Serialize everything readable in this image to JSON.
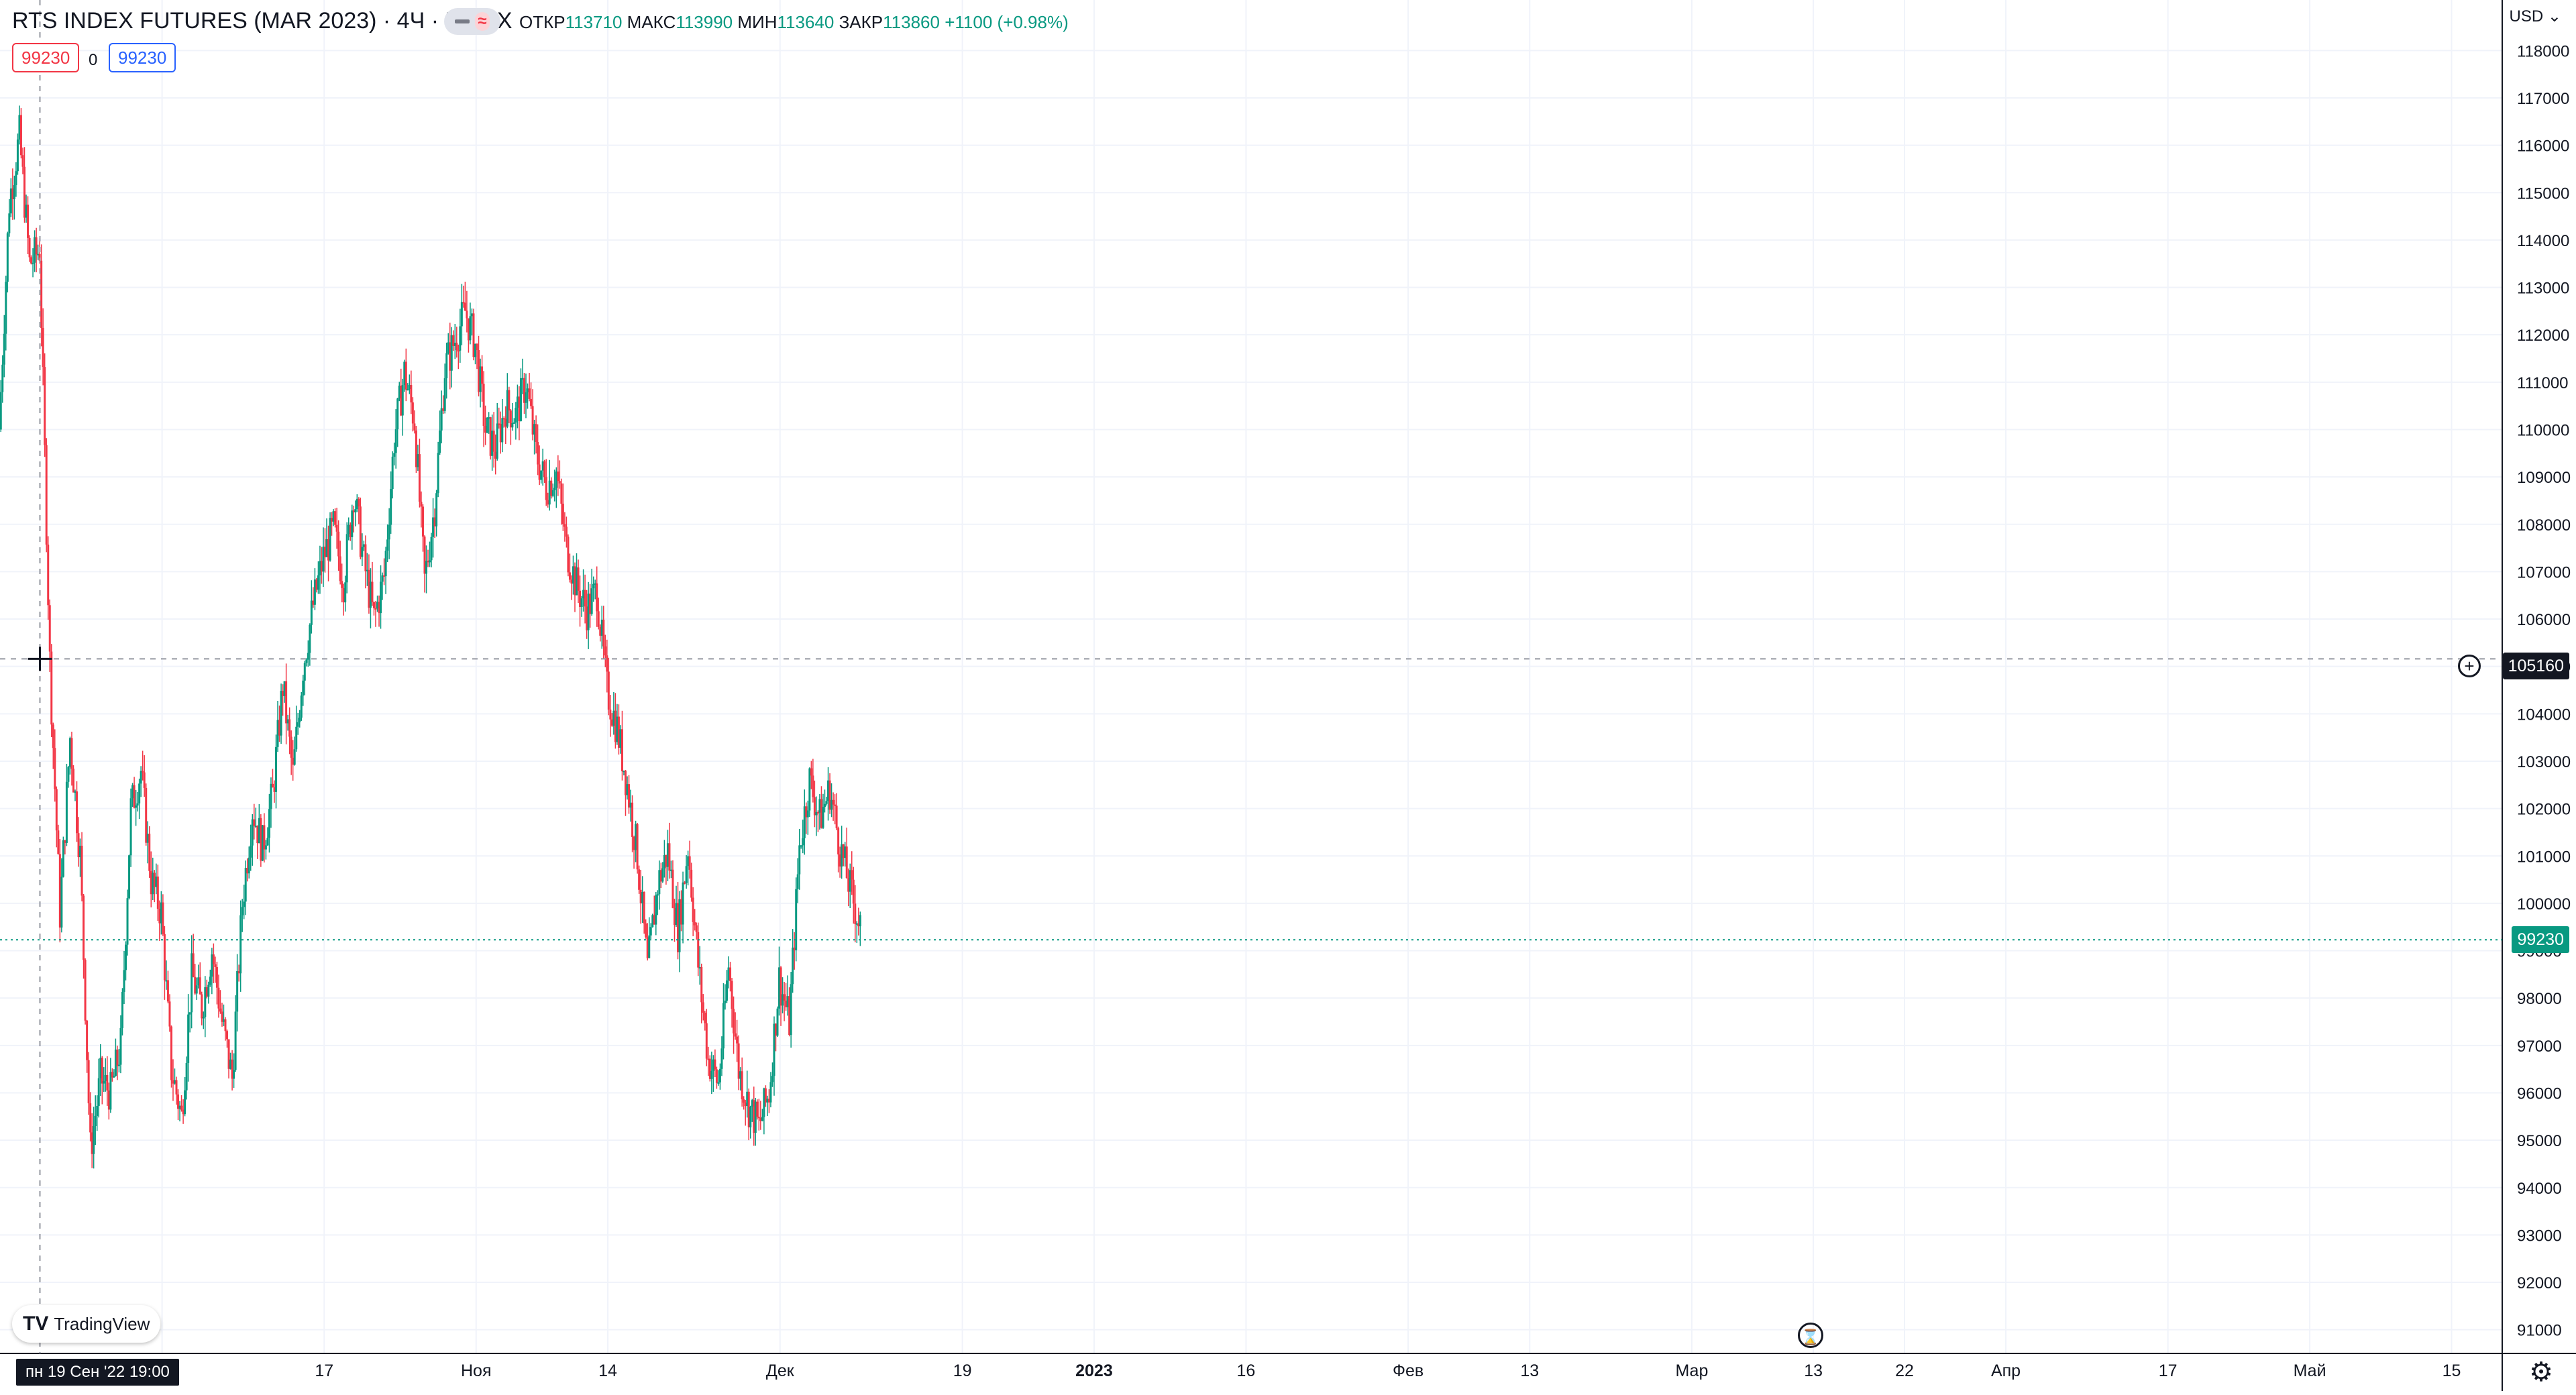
{
  "header": {
    "title": "RTS INDEX FUTURES (MAR 2023) · 4Ч · MOEX",
    "ohlc": {
      "open_label": "ОТКР",
      "open": "113710",
      "high_label": "МАКС",
      "high": "113990",
      "low_label": "МИН",
      "low": "113640",
      "close_label": "ЗАКР",
      "close": "113860",
      "change": "+1100 (+0.98%)"
    },
    "badges": {
      "bid": "99230",
      "spread": "0",
      "ask": "99230"
    }
  },
  "currency_menu": "USD",
  "crosshair": {
    "price_label": "105160",
    "time_label": "пн 19 Сен '22   19:00"
  },
  "last_price_label": "99230",
  "logo_text": "TradingView",
  "colors": {
    "up": "#089981",
    "down": "#f23645",
    "grid": "#f0f3fa",
    "crosshair": "#9598a1",
    "last_price": "#089981"
  },
  "icons": {
    "settings": "gear-icon",
    "alert": "hourglass-icon",
    "add": "plus-circle-icon"
  },
  "chart_data": {
    "type": "candlestick",
    "title": "RTS INDEX FUTURES (MAR 2023) · 4Ч · MOEX",
    "ylim": [
      90500,
      118500
    ],
    "y_ticks": [
      "118000",
      "117000",
      "116000",
      "115000",
      "114000",
      "113000",
      "112000",
      "111000",
      "110000",
      "109000",
      "108000",
      "107000",
      "106000",
      "105000",
      "104000",
      "103000",
      "102000",
      "101000",
      "100000",
      "99000",
      "98000",
      "97000",
      "96000",
      "95000",
      "94000",
      "93000",
      "92000",
      "91000"
    ],
    "x_ticks": [
      {
        "label": "Окт",
        "date": "2022-10-01"
      },
      {
        "label": "17",
        "date": "2022-10-17"
      },
      {
        "label": "Ноя",
        "date": "2022-11-01"
      },
      {
        "label": "14",
        "date": "2022-11-14"
      },
      {
        "label": "Дек",
        "date": "2022-12-01"
      },
      {
        "label": "19",
        "date": "2022-12-19"
      },
      {
        "label": "2023",
        "date": "2023-01-01"
      },
      {
        "label": "16",
        "date": "2023-01-16"
      },
      {
        "label": "Фев",
        "date": "2023-02-01"
      },
      {
        "label": "13",
        "date": "2023-02-13"
      },
      {
        "label": "Мар",
        "date": "2023-03-01"
      },
      {
        "label": "13",
        "date": "2023-03-13"
      },
      {
        "label": "22",
        "date": "2023-03-22"
      },
      {
        "label": "Апр",
        "date": "2023-04-01"
      },
      {
        "label": "17",
        "date": "2023-04-17"
      },
      {
        "label": "Май",
        "date": "2023-05-01"
      },
      {
        "label": "15",
        "date": "2023-05-15"
      }
    ],
    "x_range": [
      "2022-09-15",
      "2023-05-20"
    ],
    "last_price": 99230,
    "crosshair_price": 105160,
    "close_path": [
      {
        "date": "2022-09-15",
        "close": 110000
      },
      {
        "date": "2022-09-16",
        "close": 114800
      },
      {
        "date": "2022-09-17",
        "close": 116200
      },
      {
        "date": "2022-09-18",
        "close": 113500
      },
      {
        "date": "2022-09-19",
        "close": 113800
      },
      {
        "date": "2022-09-20",
        "close": 105100
      },
      {
        "date": "2022-09-21",
        "close": 99800
      },
      {
        "date": "2022-09-22",
        "close": 103500
      },
      {
        "date": "2022-09-23",
        "close": 101000
      },
      {
        "date": "2022-09-24",
        "close": 94800
      },
      {
        "date": "2022-09-25",
        "close": 96300
      },
      {
        "date": "2022-09-26",
        "close": 96000
      },
      {
        "date": "2022-09-27",
        "close": 97000
      },
      {
        "date": "2022-09-28",
        "close": 102000
      },
      {
        "date": "2022-09-29",
        "close": 102800
      },
      {
        "date": "2022-09-30",
        "close": 100500
      },
      {
        "date": "2022-10-01",
        "close": 99800
      },
      {
        "date": "2022-10-02",
        "close": 96500
      },
      {
        "date": "2022-10-03",
        "close": 95500
      },
      {
        "date": "2022-10-04",
        "close": 98500
      },
      {
        "date": "2022-10-05",
        "close": 97800
      },
      {
        "date": "2022-10-06",
        "close": 99000
      },
      {
        "date": "2022-10-07",
        "close": 97500
      },
      {
        "date": "2022-10-08",
        "close": 96300
      },
      {
        "date": "2022-10-09",
        "close": 100000
      },
      {
        "date": "2022-10-10",
        "close": 102000
      },
      {
        "date": "2022-10-11",
        "close": 101200
      },
      {
        "date": "2022-10-12",
        "close": 102300
      },
      {
        "date": "2022-10-13",
        "close": 104600
      },
      {
        "date": "2022-10-14",
        "close": 102700
      },
      {
        "date": "2022-10-15",
        "close": 105000
      },
      {
        "date": "2022-10-16",
        "close": 106300
      },
      {
        "date": "2022-10-17",
        "close": 107300
      },
      {
        "date": "2022-10-18",
        "close": 107900
      },
      {
        "date": "2022-10-19",
        "close": 106800
      },
      {
        "date": "2022-10-20",
        "close": 108700
      },
      {
        "date": "2022-10-21",
        "close": 107200
      },
      {
        "date": "2022-10-22",
        "close": 106000
      },
      {
        "date": "2022-10-23",
        "close": 106900
      },
      {
        "date": "2022-10-24",
        "close": 109800
      },
      {
        "date": "2022-10-25",
        "close": 111200
      },
      {
        "date": "2022-10-26",
        "close": 110200
      },
      {
        "date": "2022-10-27",
        "close": 106800
      },
      {
        "date": "2022-10-28",
        "close": 108400
      },
      {
        "date": "2022-10-29",
        "close": 111300
      },
      {
        "date": "2022-10-30",
        "close": 111900
      },
      {
        "date": "2022-10-31",
        "close": 112500
      },
      {
        "date": "2022-11-01",
        "close": 111800
      },
      {
        "date": "2022-11-02",
        "close": 110000
      },
      {
        "date": "2022-11-03",
        "close": 109600
      },
      {
        "date": "2022-11-04",
        "close": 110500
      },
      {
        "date": "2022-11-05",
        "close": 110300
      },
      {
        "date": "2022-11-06",
        "close": 111000
      },
      {
        "date": "2022-11-07",
        "close": 109500
      },
      {
        "date": "2022-11-08",
        "close": 108800
      },
      {
        "date": "2022-11-09",
        "close": 109100
      },
      {
        "date": "2022-11-10",
        "close": 107500
      },
      {
        "date": "2022-11-11",
        "close": 106700
      },
      {
        "date": "2022-11-12",
        "close": 106200
      },
      {
        "date": "2022-11-13",
        "close": 106600
      },
      {
        "date": "2022-11-14",
        "close": 104500
      },
      {
        "date": "2022-11-15",
        "close": 103700
      },
      {
        "date": "2022-11-16",
        "close": 102500
      },
      {
        "date": "2022-11-17",
        "close": 101000
      },
      {
        "date": "2022-11-18",
        "close": 98600
      },
      {
        "date": "2022-11-19",
        "close": 100400
      },
      {
        "date": "2022-11-20",
        "close": 101100
      },
      {
        "date": "2022-11-21",
        "close": 99400
      },
      {
        "date": "2022-11-22",
        "close": 101200
      },
      {
        "date": "2022-11-23",
        "close": 98700
      },
      {
        "date": "2022-11-24",
        "close": 96700
      },
      {
        "date": "2022-11-25",
        "close": 96200
      },
      {
        "date": "2022-11-26",
        "close": 98700
      },
      {
        "date": "2022-11-27",
        "close": 96500
      },
      {
        "date": "2022-11-28",
        "close": 95700
      },
      {
        "date": "2022-11-29",
        "close": 95300
      },
      {
        "date": "2022-11-30",
        "close": 96000
      },
      {
        "date": "2022-12-01",
        "close": 98400
      },
      {
        "date": "2022-12-02",
        "close": 97500
      },
      {
        "date": "2022-12-03",
        "close": 101200
      },
      {
        "date": "2022-12-04",
        "close": 102600
      },
      {
        "date": "2022-12-05",
        "close": 101800
      },
      {
        "date": "2022-12-06",
        "close": 102400
      },
      {
        "date": "2022-12-07",
        "close": 101200
      },
      {
        "date": "2022-12-08",
        "close": 100300
      },
      {
        "date": "2022-12-09",
        "close": 99500
      }
    ]
  }
}
